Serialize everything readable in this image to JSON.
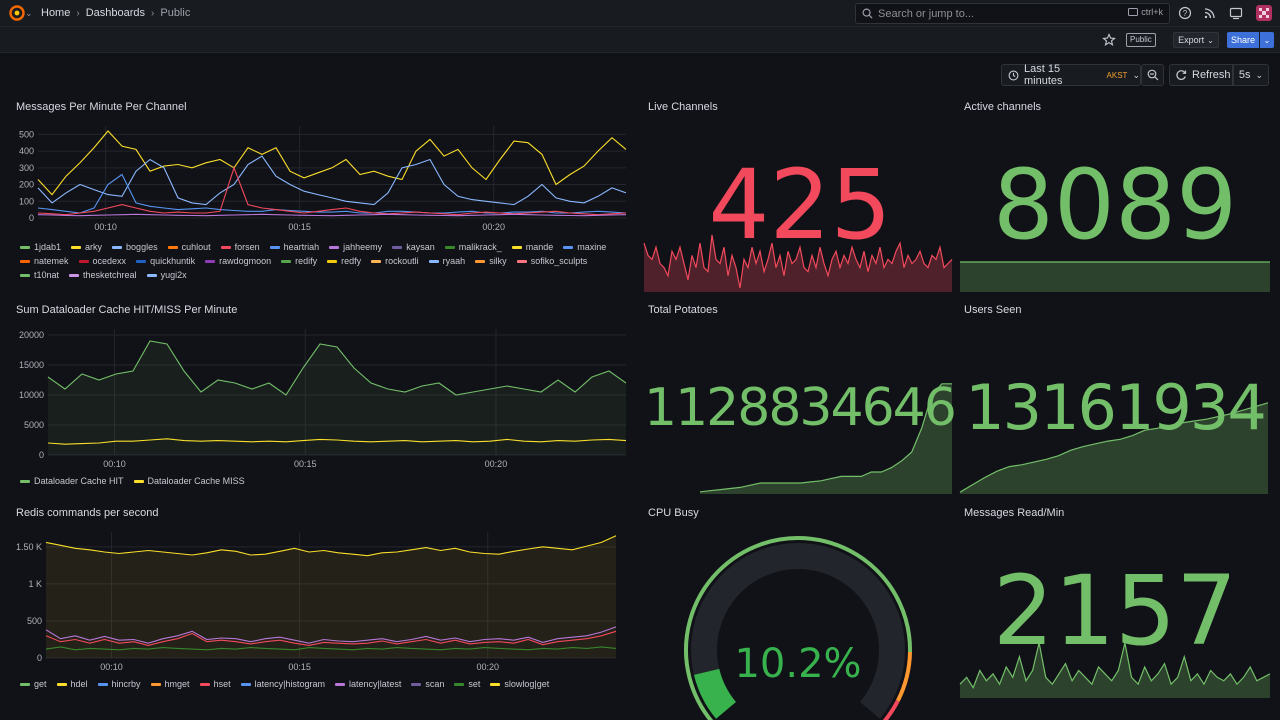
{
  "breadcrumb": {
    "home": "Home",
    "dashboards": "Dashboards",
    "current": "Public"
  },
  "search": {
    "placeholder": "Search or jump to...",
    "shortcut": "ctrl+k"
  },
  "toolbar": {
    "public_badge": "Public",
    "export_label": "Export",
    "share_label": "Share"
  },
  "timepicker": {
    "range": "Last 15 minutes",
    "timezone": "AKST",
    "refresh_label": "Refresh",
    "interval": "5s"
  },
  "colors": {
    "red": "#f2495c",
    "green": "#73bf69",
    "yellow": "#fade2a",
    "accent": "#3d71d9"
  },
  "panels": {
    "messages": {
      "title": "Messages Per Minute Per Channel",
      "legend": [
        {
          "name": "1jdab1",
          "color": "#73bf69"
        },
        {
          "name": "arky",
          "color": "#fade2a"
        },
        {
          "name": "boggles",
          "color": "#8ab8ff"
        },
        {
          "name": "cuhlout",
          "color": "#ff780a"
        },
        {
          "name": "forsen",
          "color": "#f2495c"
        },
        {
          "name": "heartriah",
          "color": "#5794f2"
        },
        {
          "name": "jahheemy",
          "color": "#b877d9"
        },
        {
          "name": "kaysan",
          "color": "#705da0"
        },
        {
          "name": "malikrack_",
          "color": "#37872d"
        },
        {
          "name": "mande",
          "color": "#fade2a"
        },
        {
          "name": "maxine",
          "color": "#5794f2"
        },
        {
          "name": "natemek",
          "color": "#fa6400"
        },
        {
          "name": "ocedexx",
          "color": "#c4162a"
        },
        {
          "name": "quickhuntik",
          "color": "#1f60c4"
        },
        {
          "name": "rawdogmoon",
          "color": "#8f3bb8"
        },
        {
          "name": "redify",
          "color": "#56a64b"
        },
        {
          "name": "redfy",
          "color": "#f2cc0c"
        },
        {
          "name": "rockoutli",
          "color": "#ffb357"
        },
        {
          "name": "ryaah",
          "color": "#8ab8ff"
        },
        {
          "name": "silky",
          "color": "#ff9830"
        },
        {
          "name": "sofiko_sculpts",
          "color": "#ff7383"
        },
        {
          "name": "t10nat",
          "color": "#73bf69"
        },
        {
          "name": "thesketchreal",
          "color": "#ca95e5"
        },
        {
          "name": "yugi2x",
          "color": "#8ab8ff"
        }
      ],
      "chart_data": {
        "type": "line",
        "ylim": [
          0,
          550
        ],
        "yticks": [
          "500",
          "400",
          "300",
          "200",
          "100",
          "0"
        ],
        "xticks": [
          "00:10",
          "00:15",
          "00:20"
        ],
        "series": [
          {
            "name": "arky",
            "values": [
              230,
              140,
              250,
              330,
              420,
              520,
              430,
              410,
              280,
              310,
              320,
              300,
              330,
              350,
              300,
              420,
              380,
              420,
              280,
              240,
              270,
              300,
              350,
              260,
              280,
              250,
              230,
              400,
              470,
              370,
              410,
              300,
              230,
              350,
              460,
              450,
              380,
              200,
              260,
              310,
              400,
              480,
              410
            ]
          },
          {
            "name": "boggles",
            "values": [
              180,
              90,
              150,
              200,
              170,
              140,
              130,
              280,
              350,
              300,
              120,
              90,
              80,
              150,
              200,
              320,
              370,
              250,
              200,
              160,
              140,
              120,
              100,
              90,
              80,
              150,
              300,
              320,
              350,
              200,
              130,
              110,
              100,
              90,
              80,
              130,
              200,
              120,
              100,
              90,
              130,
              180,
              150
            ]
          },
          {
            "name": "heartriah",
            "values": [
              60,
              50,
              40,
              30,
              60,
              200,
              260,
              90,
              70,
              60,
              50,
              55,
              60,
              50,
              45,
              40,
              40,
              50,
              45,
              40,
              35,
              35,
              40,
              30,
              30,
              40,
              40,
              35,
              30,
              30,
              35,
              40,
              30,
              30,
              35,
              35,
              40,
              30,
              30,
              35,
              40,
              35,
              30
            ]
          },
          {
            "name": "forsen",
            "values": [
              30,
              25,
              20,
              30,
              40,
              60,
              80,
              60,
              40,
              30,
              35,
              30,
              30,
              40,
              300,
              80,
              60,
              50,
              40,
              30,
              40,
              50,
              60,
              40,
              30,
              25,
              30,
              35,
              30,
              25,
              20,
              30,
              35,
              30,
              25,
              30,
              35,
              40,
              30,
              25,
              20,
              25,
              30
            ]
          },
          {
            "name": "jahheemy",
            "values": [
              20,
              18,
              15,
              14,
              16,
              18,
              20,
              22,
              20,
              18,
              16,
              15,
              14,
              16,
              18,
              20,
              22,
              20,
              18,
              16,
              15,
              14,
              16,
              18,
              20,
              22,
              20,
              18,
              16,
              15,
              14,
              16,
              18,
              20,
              22,
              20,
              18,
              16,
              15,
              14,
              16,
              18,
              20
            ]
          }
        ]
      }
    },
    "live_channels": {
      "title": "Live Channels",
      "value": "425",
      "chart_data": {
        "type": "area",
        "values": [
          60,
          45,
          40,
          55,
          35,
          30,
          20,
          50,
          40,
          55,
          35,
          15,
          45,
          30,
          60,
          30,
          25,
          70,
          40,
          35,
          55,
          20,
          45,
          30,
          5,
          40,
          30,
          55,
          35,
          50,
          25,
          40,
          60,
          30,
          45,
          20,
          50,
          35,
          40,
          55,
          30,
          25,
          45,
          30,
          55,
          35,
          20,
          40,
          50,
          30,
          45,
          35,
          55,
          40,
          30,
          50,
          25,
          45,
          35,
          55,
          30,
          40,
          35,
          50,
          60,
          30,
          45,
          35,
          40,
          50,
          35,
          30,
          45,
          40,
          55,
          30,
          35,
          40
        ]
      }
    },
    "active_channels": {
      "title": "Active channels",
      "value": "8089",
      "chart_data": {
        "type": "area",
        "values": [
          30,
          30,
          30,
          30,
          30,
          30,
          30,
          30
        ]
      }
    },
    "dataloader": {
      "title": "Sum Dataloader Cache HIT/MISS Per Minute",
      "legend": [
        {
          "name": "Dataloader Cache HIT",
          "color": "#73bf69"
        },
        {
          "name": "Dataloader Cache MISS",
          "color": "#fade2a"
        }
      ],
      "chart_data": {
        "type": "line",
        "ylim": [
          0,
          21000
        ],
        "yticks": [
          "20000",
          "15000",
          "10000",
          "5000",
          "0"
        ],
        "xticks": [
          "00:10",
          "00:15",
          "00:20"
        ],
        "series": [
          {
            "name": "Dataloader Cache HIT",
            "values": [
              13000,
              11000,
              13500,
              12500,
              13500,
              14000,
              19000,
              18500,
              14000,
              10500,
              12500,
              12000,
              11000,
              12000,
              10000,
              14500,
              18500,
              18000,
              14500,
              12000,
              11000,
              10500,
              11500,
              12000,
              10000,
              10500,
              11000,
              11500,
              11000,
              10500,
              12500,
              10500,
              13000,
              14000,
              12000
            ]
          },
          {
            "name": "Dataloader Cache MISS",
            "values": [
              2000,
              1800,
              1900,
              2000,
              2300,
              2300,
              2500,
              2700,
              2400,
              2300,
              2400,
              2300,
              2200,
              2300,
              2200,
              2400,
              2600,
              2500,
              2300,
              2200,
              2300,
              2400,
              2200,
              2300,
              2400,
              2200,
              2300,
              2600,
              2300,
              2200,
              2400,
              2300,
              2500,
              2600,
              2400
            ]
          }
        ]
      }
    },
    "total_potatoes": {
      "title": "Total Potatoes",
      "value": "1128834646",
      "chart_data": {
        "type": "area",
        "values": [
          2,
          3,
          4,
          5,
          6,
          8,
          10,
          10,
          10,
          10,
          10,
          11,
          12,
          14,
          16,
          16,
          16,
          20,
          20,
          24,
          30,
          38,
          60,
          90,
          100,
          100
        ]
      }
    },
    "users_seen": {
      "title": "Users Seen",
      "value": "13161934",
      "chart_data": {
        "type": "area",
        "values": [
          2,
          10,
          18,
          25,
          30,
          32,
          35,
          38,
          42,
          48,
          52,
          55,
          58,
          60,
          64,
          70,
          72,
          75,
          78,
          80,
          82,
          85,
          88,
          92,
          96,
          100
        ]
      }
    },
    "redis": {
      "title": "Redis commands per second",
      "legend": [
        {
          "name": "get",
          "color": "#73bf69"
        },
        {
          "name": "hdel",
          "color": "#fade2a"
        },
        {
          "name": "hincrby",
          "color": "#5794f2"
        },
        {
          "name": "hmget",
          "color": "#ff9830"
        },
        {
          "name": "hset",
          "color": "#f2495c"
        },
        {
          "name": "latency|histogram",
          "color": "#5794f2"
        },
        {
          "name": "latency|latest",
          "color": "#b877d9"
        },
        {
          "name": "scan",
          "color": "#705da0"
        },
        {
          "name": "set",
          "color": "#37872d"
        },
        {
          "name": "slowlog|get",
          "color": "#fade2a"
        }
      ],
      "chart_data": {
        "type": "line",
        "ylim": [
          0,
          1700
        ],
        "yticks": [
          "1.50 K",
          "1 K",
          "500",
          "0"
        ],
        "xticks": [
          "00:10",
          "00:15",
          "00:20"
        ],
        "series": [
          {
            "name": "hdel",
            "values": [
              1560,
              1520,
              1480,
              1460,
              1430,
              1410,
              1430,
              1450,
              1430,
              1410,
              1390,
              1420,
              1460,
              1440,
              1390,
              1400,
              1440,
              1480,
              1430,
              1450,
              1420,
              1400,
              1380,
              1420,
              1430,
              1460,
              1490,
              1450,
              1480,
              1430,
              1410,
              1400,
              1440,
              1470,
              1500,
              1480,
              1460,
              1510,
              1560,
              1650
            ]
          },
          {
            "name": "latency|latest",
            "values": [
              380,
              260,
              300,
              240,
              290,
              240,
              250,
              200,
              260,
              300,
              360,
              250,
              270,
              260,
              220,
              260,
              280,
              240,
              200,
              250,
              230,
              220,
              240,
              260,
              220,
              250,
              290,
              240,
              270,
              220,
              250,
              260,
              240,
              280,
              210,
              260,
              280,
              300,
              350,
              420
            ]
          },
          {
            "name": "hset",
            "values": [
              300,
              220,
              250,
              200,
              250,
              200,
              220,
              170,
              220,
              260,
              330,
              220,
              240,
              220,
              190,
              220,
              240,
              200,
              170,
              210,
              200,
              190,
              200,
              230,
              190,
              220,
              250,
              200,
              240,
              190,
              210,
              220,
              200,
              250,
              180,
              220,
              240,
              260,
              300,
              360
            ]
          },
          {
            "name": "set",
            "values": [
              120,
              150,
              110,
              130,
              120,
              110,
              130,
              120,
              140,
              130,
              120,
              110,
              130,
              120,
              140,
              130,
              120,
              110,
              140,
              130,
              120,
              110,
              130,
              120,
              140,
              130,
              120,
              110,
              130,
              120,
              140,
              130,
              120,
              110,
              130,
              120,
              140,
              130,
              150,
              130
            ]
          }
        ]
      }
    },
    "cpu_busy": {
      "title": "CPU Busy",
      "value": "10.2%",
      "chart_data": {
        "type": "gauge",
        "value": 10.2,
        "min": 0,
        "max": 100,
        "thresholds": [
          {
            "value": 0,
            "color": "#73bf69"
          },
          {
            "value": 85,
            "color": "#ff9830"
          },
          {
            "value": 95,
            "color": "#f2495c"
          }
        ]
      }
    },
    "messages_read": {
      "title": "Messages Read/Min",
      "value": "2157",
      "chart_data": {
        "type": "area",
        "values": [
          20,
          30,
          15,
          40,
          25,
          35,
          20,
          45,
          30,
          60,
          25,
          40,
          80,
          30,
          20,
          35,
          50,
          25,
          40,
          30,
          20,
          45,
          35,
          25,
          40,
          80,
          30,
          20,
          45,
          25,
          35,
          50,
          20,
          30,
          60,
          25,
          35,
          20,
          40,
          30,
          25,
          35,
          20,
          30,
          45,
          25,
          30,
          35
        ]
      }
    }
  }
}
